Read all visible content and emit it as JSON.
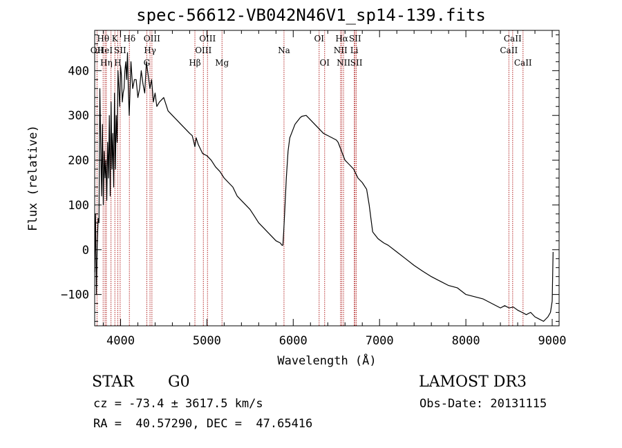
{
  "header": {
    "title": "spec-56612-VB042N46V1_sp14-139.fits"
  },
  "info": {
    "class": "STAR",
    "subclass": "G0",
    "survey": "LAMOST DR3",
    "cz": "cz = -73.4 ± 3617.5 km/s",
    "obs_date": "Obs-Date: 20131115",
    "coords": "RA =  40.57290, DEC =  47.65416"
  },
  "chart_data": {
    "type": "line",
    "title": "spec-56612-VB042N46V1_sp14-139.fits",
    "xlabel": "Wavelength (Å)",
    "ylabel": "Flux (relative)",
    "xlim": [
      3700,
      9080
    ],
    "ylim": [
      -170,
      490
    ],
    "xticks": [
      4000,
      5000,
      6000,
      7000,
      8000,
      9000
    ],
    "yticks": [
      -100,
      0,
      100,
      200,
      300,
      400
    ],
    "minor_x_step": 200,
    "minor_y_step": 20,
    "line_color": "#000000",
    "marker_color": "#b22222",
    "series": [
      {
        "name": "flux",
        "x": [
          3700,
          3710,
          3720,
          3730,
          3740,
          3750,
          3760,
          3770,
          3780,
          3790,
          3800,
          3810,
          3820,
          3830,
          3840,
          3850,
          3860,
          3870,
          3880,
          3890,
          3900,
          3910,
          3920,
          3930,
          3940,
          3950,
          3960,
          3970,
          3980,
          3990,
          4000,
          4010,
          4020,
          4030,
          4040,
          4050,
          4060,
          4070,
          4080,
          4090,
          4100,
          4120,
          4140,
          4160,
          4180,
          4200,
          4220,
          4240,
          4260,
          4280,
          4300,
          4320,
          4340,
          4360,
          4380,
          4400,
          4420,
          4450,
          4500,
          4550,
          4600,
          4650,
          4700,
          4750,
          4800,
          4830,
          4850,
          4861,
          4875,
          4900,
          4950,
          5000,
          5050,
          5100,
          5150,
          5200,
          5250,
          5300,
          5350,
          5400,
          5450,
          5500,
          5550,
          5600,
          5650,
          5700,
          5750,
          5800,
          5850,
          5870,
          5880,
          5890,
          5900,
          5920,
          5940,
          5960,
          5980,
          6000,
          6020,
          6040,
          6060,
          6080,
          6100,
          6150,
          6200,
          6250,
          6300,
          6350,
          6400,
          6450,
          6500,
          6520,
          6540,
          6560,
          6580,
          6600,
          6650,
          6700,
          6750,
          6800,
          6850,
          6880,
          6900,
          6920,
          6940,
          6960,
          6980,
          7000,
          7050,
          7100,
          7200,
          7300,
          7400,
          7500,
          7600,
          7700,
          7800,
          7900,
          8000,
          8100,
          8200,
          8300,
          8400,
          8450,
          8500,
          8550,
          8600,
          8650,
          8700,
          8750,
          8800,
          8850,
          8900,
          8950,
          8980,
          9000,
          9010
        ],
        "y": [
          -50,
          80,
          -100,
          10,
          70,
          60,
          360,
          240,
          120,
          280,
          100,
          220,
          160,
          200,
          110,
          240,
          160,
          300,
          120,
          330,
          180,
          260,
          140,
          350,
          180,
          300,
          240,
          400,
          360,
          320,
          410,
          390,
          330,
          350,
          360,
          400,
          420,
          380,
          440,
          360,
          300,
          420,
          360,
          380,
          380,
          340,
          360,
          400,
          370,
          350,
          420,
          390,
          360,
          380,
          330,
          350,
          320,
          330,
          340,
          310,
          300,
          290,
          280,
          270,
          260,
          255,
          240,
          230,
          250,
          235,
          215,
          210,
          200,
          185,
          175,
          160,
          150,
          140,
          120,
          110,
          100,
          90,
          75,
          60,
          50,
          40,
          30,
          20,
          15,
          10,
          10,
          40,
          80,
          160,
          220,
          250,
          260,
          270,
          280,
          285,
          290,
          295,
          298,
          300,
          290,
          280,
          270,
          260,
          255,
          250,
          245,
          240,
          230,
          220,
          210,
          200,
          190,
          180,
          160,
          150,
          135,
          100,
          70,
          40,
          35,
          30,
          25,
          22,
          15,
          10,
          -5,
          -20,
          -35,
          -48,
          -60,
          -70,
          -80,
          -85,
          -100,
          -105,
          -110,
          -120,
          -130,
          -125,
          -130,
          -128,
          -135,
          -140,
          -145,
          -140,
          -150,
          -155,
          -160,
          -150,
          -140,
          -115,
          -5
        ]
      }
    ],
    "line_markers": [
      {
        "wave": 3727,
        "label": "OII",
        "row": 1
      },
      {
        "wave": 3798,
        "label": "Hθ",
        "row": 0
      },
      {
        "wave": 3820,
        "label": "HeI",
        "row": 1
      },
      {
        "wave": 3835,
        "label": "Hη",
        "row": 2
      },
      {
        "wave": 3889,
        "label": "",
        "row": 0
      },
      {
        "wave": 3934,
        "label": "K",
        "row": 0
      },
      {
        "wave": 3968,
        "label": "H",
        "row": 2
      },
      {
        "wave": 3995,
        "label": "SII",
        "row": 1
      },
      {
        "wave": 4102,
        "label": "Hδ",
        "row": 0
      },
      {
        "wave": 4304,
        "label": "G",
        "row": 2
      },
      {
        "wave": 4341,
        "label": "Hγ",
        "row": 1
      },
      {
        "wave": 4363,
        "label": "OIII",
        "row": 0
      },
      {
        "wave": 4861,
        "label": "Hβ",
        "row": 2
      },
      {
        "wave": 4959,
        "label": "OIII",
        "row": 1
      },
      {
        "wave": 5007,
        "label": "OIII",
        "row": 0
      },
      {
        "wave": 5175,
        "label": "Mg",
        "row": 2
      },
      {
        "wave": 5893,
        "label": "Na",
        "row": 1
      },
      {
        "wave": 6300,
        "label": "OI",
        "row": 0
      },
      {
        "wave": 6364,
        "label": "OI",
        "row": 2
      },
      {
        "wave": 6548,
        "label": "NII",
        "row": 1
      },
      {
        "wave": 6563,
        "label": "Hα",
        "row": 0
      },
      {
        "wave": 6583,
        "label": "NII",
        "row": 2
      },
      {
        "wave": 6707,
        "label": "Li",
        "row": 1
      },
      {
        "wave": 6716,
        "label": "SII",
        "row": 0
      },
      {
        "wave": 6731,
        "label": "SII",
        "row": 2
      },
      {
        "wave": 8498,
        "label": "CaII",
        "row": 1
      },
      {
        "wave": 8542,
        "label": "CaII",
        "row": 0
      },
      {
        "wave": 8662,
        "label": "CaII",
        "row": 2
      }
    ]
  }
}
